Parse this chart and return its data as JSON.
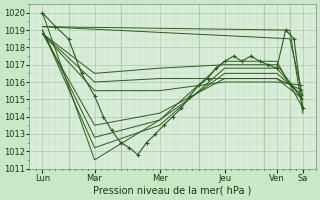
{
  "xlabel": "Pression niveau de la mer( hPa )",
  "bg_color": "#c8e8c8",
  "plot_bg_color": "#d8edd8",
  "line_color": "#2d5a1b",
  "grid_major_color": "#adc8ad",
  "grid_minor_color": "#c8dcc8",
  "ylim": [
    1011,
    1020.5
  ],
  "yticks": [
    1011,
    1012,
    1013,
    1014,
    1015,
    1016,
    1017,
    1018,
    1019,
    1020
  ],
  "xlim": [
    0,
    5.5
  ],
  "day_positions": [
    0.25,
    1.25,
    2.5,
    3.75,
    4.75,
    5.25
  ],
  "day_labels": [
    "Lun",
    "Mar",
    "Mer",
    "Jeu",
    "Ven",
    "Sa"
  ],
  "vlines": [
    0.75,
    1.75,
    3.25,
    4.5,
    5.0
  ],
  "fan_lines": [
    {
      "x": [
        0.25,
        1.25,
        2.5,
        3.75,
        4.75,
        5.25
      ],
      "y": [
        1020.0,
        1011.5,
        1013.8,
        1017.2,
        1017.2,
        1014.5
      ]
    },
    {
      "x": [
        0.25,
        1.25,
        2.5,
        3.75,
        4.75,
        5.25
      ],
      "y": [
        1019.0,
        1012.2,
        1013.5,
        1016.8,
        1016.8,
        1015.0
      ]
    },
    {
      "x": [
        0.25,
        1.25,
        2.5,
        3.75,
        4.75,
        5.25
      ],
      "y": [
        1019.0,
        1012.8,
        1013.8,
        1016.5,
        1016.5,
        1015.2
      ]
    },
    {
      "x": [
        0.25,
        1.25,
        2.5,
        3.75,
        4.75,
        5.25
      ],
      "y": [
        1018.8,
        1013.5,
        1014.2,
        1016.2,
        1016.2,
        1015.5
      ]
    },
    {
      "x": [
        0.25,
        1.25,
        2.5,
        3.75,
        4.75,
        5.25
      ],
      "y": [
        1018.8,
        1015.5,
        1015.5,
        1016.0,
        1016.0,
        1015.8
      ]
    },
    {
      "x": [
        0.25,
        1.25,
        2.5,
        3.75,
        4.75,
        5.25
      ],
      "y": [
        1018.8,
        1016.0,
        1016.2,
        1016.2,
        1016.2,
        1015.0
      ]
    },
    {
      "x": [
        0.25,
        1.25,
        2.5,
        3.75,
        4.75,
        5.25
      ],
      "y": [
        1018.8,
        1016.5,
        1016.8,
        1017.0,
        1017.0,
        1015.0
      ]
    },
    {
      "x": [
        0.25,
        5.0,
        5.25
      ],
      "y": [
        1019.2,
        1019.0,
        1014.2
      ]
    },
    {
      "x": [
        0.25,
        5.0,
        5.25
      ],
      "y": [
        1019.2,
        1018.5,
        1015.2
      ]
    }
  ],
  "main_trace_x": [
    0.25,
    0.5,
    0.75,
    1.0,
    1.25,
    1.42,
    1.58,
    1.75,
    1.92,
    2.08,
    2.25,
    2.42,
    2.58,
    2.75,
    2.92,
    3.08,
    3.25,
    3.42,
    3.58,
    3.75,
    3.92,
    4.08,
    4.25,
    4.42,
    4.58,
    4.75,
    4.92,
    5.08,
    5.25
  ],
  "main_trace_y": [
    1020.0,
    1019.2,
    1018.5,
    1016.5,
    1015.2,
    1014.0,
    1013.2,
    1012.5,
    1012.2,
    1011.8,
    1012.5,
    1013.0,
    1013.5,
    1014.0,
    1014.5,
    1015.2,
    1015.8,
    1016.2,
    1016.8,
    1017.2,
    1017.5,
    1017.2,
    1017.5,
    1017.2,
    1017.0,
    1016.8,
    1019.0,
    1018.5,
    1014.5
  ]
}
